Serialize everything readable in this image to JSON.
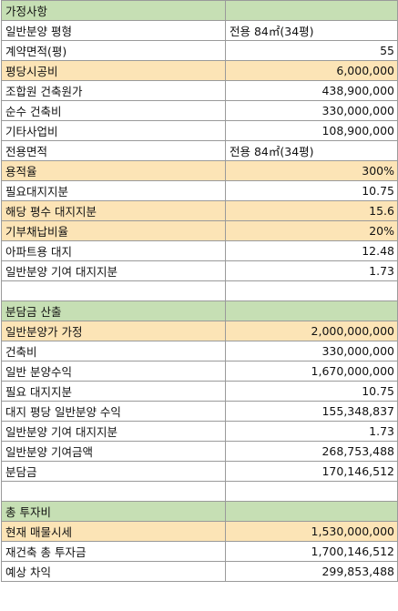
{
  "sections": [
    {
      "title": "가정사항",
      "rows": [
        {
          "label": "일반분양 평형",
          "value": "전용 84㎡(34평)",
          "text": true,
          "highlight": false
        },
        {
          "label": "계약면적(평)",
          "value": "55",
          "highlight": false
        },
        {
          "label": "평당시공비",
          "value": "6,000,000",
          "highlight": true
        },
        {
          "label": "조합원 건축원가",
          "value": "438,900,000",
          "highlight": false
        },
        {
          "label": "순수 건축비",
          "value": "330,000,000",
          "highlight": false
        },
        {
          "label": "기타사업비",
          "value": "108,900,000",
          "highlight": false
        },
        {
          "label": "전용면적",
          "value": "전용 84㎡(34평)",
          "text": true,
          "highlight": false
        },
        {
          "label": "용적율",
          "value": "300%",
          "highlight": true
        },
        {
          "label": "필요대지지분",
          "value": "10.75",
          "highlight": false
        },
        {
          "label": "해당 평수 대지지분",
          "value": "15.6",
          "highlight": true
        },
        {
          "label": "기부채납비율",
          "value": "20%",
          "highlight": true
        },
        {
          "label": "아파트용 대지",
          "value": "12.48",
          "highlight": false
        },
        {
          "label": "일반분양 기여 대지지분",
          "value": "1.73",
          "highlight": false
        }
      ]
    },
    {
      "title": "분담금 산출",
      "rows": [
        {
          "label": "일반분양가 가정",
          "value": "2,000,000,000",
          "highlight": true
        },
        {
          "label": "건축비",
          "value": "330,000,000",
          "highlight": false
        },
        {
          "label": "일반 분양수익",
          "value": "1,670,000,000",
          "highlight": false
        },
        {
          "label": "필요 대지지분",
          "value": "10.75",
          "highlight": false
        },
        {
          "label": "대지 평당 일반분양 수익",
          "value": "155,348,837",
          "highlight": false
        },
        {
          "label": "일반분양 기여 대지지분",
          "value": "1.73",
          "highlight": false
        },
        {
          "label": "일반분양 기여금액",
          "value": "268,753,488",
          "highlight": false
        },
        {
          "label": "분담금",
          "value": "170,146,512",
          "highlight": false
        }
      ]
    },
    {
      "title": "총 투자비",
      "rows": [
        {
          "label": "현재 매물시세",
          "value": "1,530,000,000",
          "highlight": true
        },
        {
          "label": "재건축 총 투자금",
          "value": "1,700,146,512",
          "highlight": false
        },
        {
          "label": "예상 차익",
          "value": "299,853,488",
          "highlight": false
        }
      ]
    }
  ]
}
